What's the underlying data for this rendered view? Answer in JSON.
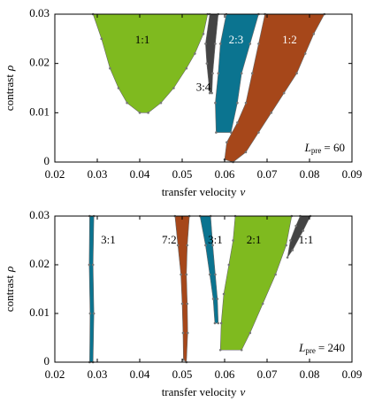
{
  "chart_data": [
    {
      "type": "region",
      "xlabel": "transfer velocity",
      "xlabel_symbol": "v",
      "ylabel": "contrast",
      "ylabel_symbol": "ρ",
      "xlim": [
        0.02,
        0.09
      ],
      "xticks": [
        0.02,
        0.03,
        0.04,
        0.05,
        0.06,
        0.07,
        0.08,
        0.09
      ],
      "ylim": [
        0,
        0.03
      ],
      "yticks": [
        0,
        0.01,
        0.02,
        0.03
      ],
      "annotation": {
        "symbol": "L",
        "subscript": "pre",
        "text": "= 60"
      },
      "series": [
        {
          "name": "1:1",
          "color": "#7fba1f",
          "label_color": "#000000",
          "x": [
            0.029,
            0.031,
            0.033,
            0.035,
            0.037,
            0.04,
            0.042,
            0.045,
            0.048,
            0.051,
            0.053,
            0.055,
            0.056
          ],
          "values": [
            0.03,
            0.025,
            0.019,
            0.015,
            0.012,
            0.01,
            0.01,
            0.012,
            0.015,
            0.019,
            0.022,
            0.026,
            0.03
          ]
        },
        {
          "name": "3:4",
          "color": "#444444",
          "label_color": "#000000",
          "x": [
            0.0565,
            0.0585,
            0.0578,
            0.0572,
            0.057,
            0.0565,
            0.0558,
            0.0555
          ],
          "values": [
            0.03,
            0.03,
            0.024,
            0.018,
            0.014,
            0.014,
            0.02,
            0.024
          ]
        },
        {
          "name": "2:3",
          "color": "#0b7490",
          "label_color": "#ffffff",
          "x": [
            0.0604,
            0.068,
            0.066,
            0.064,
            0.063,
            0.0615,
            0.058,
            0.0578,
            0.0585,
            0.059
          ],
          "values": [
            0.03,
            0.03,
            0.024,
            0.018,
            0.012,
            0.006,
            0.006,
            0.012,
            0.018,
            0.024
          ]
        },
        {
          "name": "1:2",
          "color": "#a6471a",
          "label_color": "#ffffff",
          "x": [
            0.0695,
            0.0835,
            0.081,
            0.079,
            0.077,
            0.074,
            0.071,
            0.068,
            0.065,
            0.062,
            0.06,
            0.0605,
            0.063,
            0.065,
            0.0665,
            0.068
          ],
          "values": [
            0.03,
            0.03,
            0.026,
            0.022,
            0.018,
            0.014,
            0.01,
            0.006,
            0.002,
            0,
            0.0005,
            0.004,
            0.008,
            0.012,
            0.018,
            0.024
          ]
        }
      ]
    },
    {
      "type": "region",
      "xlabel": "transfer velocity",
      "xlabel_symbol": "v",
      "ylabel": "contrast",
      "ylabel_symbol": "ρ",
      "xlim": [
        0.02,
        0.09
      ],
      "xticks": [
        0.02,
        0.03,
        0.04,
        0.05,
        0.06,
        0.07,
        0.08,
        0.09
      ],
      "ylim": [
        0,
        0.03
      ],
      "yticks": [
        0,
        0.01,
        0.02,
        0.03
      ],
      "annotation": {
        "symbol": "L",
        "subscript": "pre",
        "text": "= 240"
      },
      "series": [
        {
          "name": "3:1",
          "color": "#0b7490",
          "label_color": "#000000",
          "x": [
            0.0282,
            0.0292,
            0.029,
            0.0292,
            0.029,
            0.0282,
            0.0283,
            0.0281
          ],
          "values": [
            0.03,
            0.03,
            0.02,
            0.01,
            0,
            0,
            0.01,
            0.02
          ]
        },
        {
          "name": "7:2",
          "color": "#a6471a",
          "label_color": "#000000",
          "x": [
            0.0483,
            0.0517,
            0.0512,
            0.051,
            0.0512,
            0.0513,
            0.051,
            0.0503,
            0.0502,
            0.05,
            0.0497,
            0.049
          ],
          "values": [
            0.03,
            0.03,
            0.024,
            0.018,
            0.012,
            0.006,
            0,
            0.0005,
            0.006,
            0.012,
            0.018,
            0.024
          ]
        },
        {
          "name": "3:1",
          "color": "#0b7490",
          "label_color": "#000000",
          "x": [
            0.0542,
            0.0567,
            0.0572,
            0.0578,
            0.0583,
            0.0585,
            0.0577,
            0.0573,
            0.0565,
            0.0555
          ],
          "values": [
            0.03,
            0.03,
            0.024,
            0.018,
            0.013,
            0.008,
            0.008,
            0.013,
            0.018,
            0.024
          ]
        },
        {
          "name": "2:1",
          "color": "#7fba1f",
          "label_color": "#000000",
          "x": [
            0.0625,
            0.0758,
            0.0745,
            0.072,
            0.069,
            0.066,
            0.064,
            0.059,
            0.0592,
            0.0598,
            0.061,
            0.062
          ],
          "values": [
            0.03,
            0.03,
            0.024,
            0.018,
            0.012,
            0.006,
            0.0025,
            0.0025,
            0.008,
            0.014,
            0.02,
            0.025
          ]
        },
        {
          "name": "1:1",
          "color": "#444444",
          "label_color": "#000000",
          "x": [
            0.0778,
            0.0802,
            0.0785,
            0.076,
            0.0748,
            0.0755,
            0.0768
          ],
          "values": [
            0.03,
            0.03,
            0.027,
            0.023,
            0.0215,
            0.025,
            0.028
          ]
        }
      ]
    }
  ]
}
